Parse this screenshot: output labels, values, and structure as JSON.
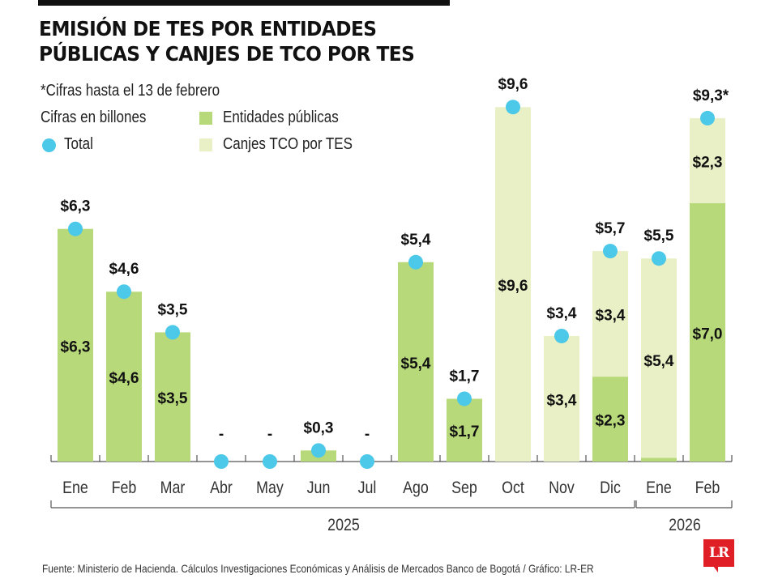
{
  "header": {
    "title_line1": "EMISIÓN DE TES POR ENTIDADES",
    "title_line2": "PÚBLICAS Y CANJES DE TCO POR TES",
    "note": "*Cifras hasta el 13 de febrero",
    "units": "Cifras en billones"
  },
  "legend": {
    "total": "Total",
    "entidades": "Entidades públicas",
    "canjes": "Canjes TCO por TES"
  },
  "colors": {
    "entidades": "#b7d97a",
    "canjes": "#e9f0c6",
    "total": "#4cc8e8",
    "axis": "#555555"
  },
  "chart_data": {
    "type": "bar",
    "stacked": true,
    "title": "EMISIÓN DE TES POR ENTIDADES PÚBLICAS Y CANJES DE TCO POR TES",
    "subtitle": "*Cifras hasta el 13 de febrero",
    "units": "Cifras en billones",
    "xlabel": "",
    "ylabel": "",
    "ylim": [
      0,
      10
    ],
    "grid": false,
    "legend_position": "top-left",
    "categories": [
      "Ene",
      "Feb",
      "Mar",
      "Abr",
      "May",
      "Jun",
      "Jul",
      "Ago",
      "Sep",
      "Oct",
      "Nov",
      "Dic",
      "Ene",
      "Feb"
    ],
    "year_groups": [
      {
        "label": "2025",
        "months": 12
      },
      {
        "label": "2026",
        "months": 2
      }
    ],
    "series": [
      {
        "name": "Entidades públicas",
        "values": [
          6.3,
          4.6,
          3.5,
          0,
          0,
          0.3,
          0,
          5.4,
          1.7,
          0,
          0,
          2.3,
          0.1,
          7.0
        ]
      },
      {
        "name": "Canjes TCO por TES",
        "values": [
          0,
          0,
          0,
          0,
          0,
          0,
          0,
          0,
          0,
          9.6,
          3.4,
          3.4,
          5.4,
          2.3
        ]
      },
      {
        "name": "Total",
        "type": "scatter",
        "values": [
          6.3,
          4.6,
          3.5,
          0,
          0,
          0.3,
          0,
          5.4,
          1.7,
          9.6,
          3.4,
          5.7,
          5.5,
          9.3
        ]
      }
    ],
    "total_labels": [
      "$6,3",
      "$4,6",
      "$3,5",
      "-",
      "-",
      "$0,3",
      "-",
      "$5,4",
      "$1,7",
      "$9,6",
      "$3,4",
      "$5,7",
      "$5,5",
      "$9,3*"
    ],
    "entidades_labels": [
      "$6,3",
      "$4,6",
      "$3,5",
      "",
      "",
      "",
      "",
      "$5,4",
      "$1,7",
      "",
      "",
      "$2,3",
      "",
      "$7,0"
    ],
    "canjes_labels": [
      "",
      "",
      "",
      "",
      "",
      "",
      "",
      "",
      "",
      "$9,6",
      "$3,4",
      "$3,4",
      "$5,4",
      "$2,3"
    ]
  },
  "footer": {
    "source": "Fuente: Ministerio de Hacienda. Cálculos Investigaciones Económicas y Análisis de Mercados Banco de Bogotá / Gráfico: LR-ER",
    "logo": "LR"
  }
}
